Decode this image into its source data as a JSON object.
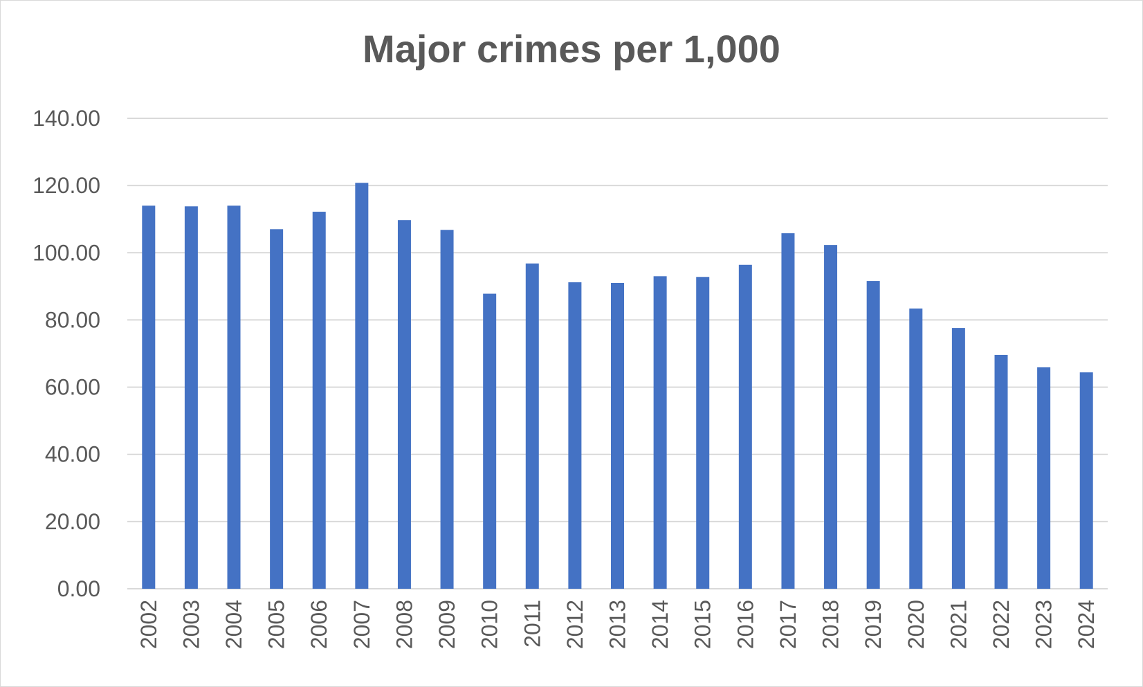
{
  "chart_data": {
    "type": "bar",
    "title": "Major crimes per 1,000",
    "xlabel": "",
    "ylabel": "",
    "ylim": [
      0,
      140
    ],
    "y_ticks": [
      "0.00",
      "20.00",
      "40.00",
      "60.00",
      "80.00",
      "100.00",
      "120.00",
      "140.00"
    ],
    "y_tick_values": [
      0,
      20,
      40,
      60,
      80,
      100,
      120,
      140
    ],
    "grid": true,
    "legend": "none",
    "bar_color": "#4472c4",
    "categories": [
      "2002",
      "2003",
      "2004",
      "2005",
      "2006",
      "2007",
      "2008",
      "2009",
      "2010",
      "2011",
      "2012",
      "2013",
      "2014",
      "2015",
      "2016",
      "2017",
      "2018",
      "2019",
      "2020",
      "2021",
      "2022",
      "2023",
      "2024"
    ],
    "values": [
      114.0,
      113.8,
      114.0,
      107.0,
      112.2,
      120.8,
      109.7,
      106.8,
      87.8,
      96.8,
      91.2,
      91.0,
      93.0,
      92.8,
      96.4,
      105.8,
      102.3,
      91.6,
      83.4,
      77.6,
      69.6,
      65.9,
      64.4
    ]
  }
}
